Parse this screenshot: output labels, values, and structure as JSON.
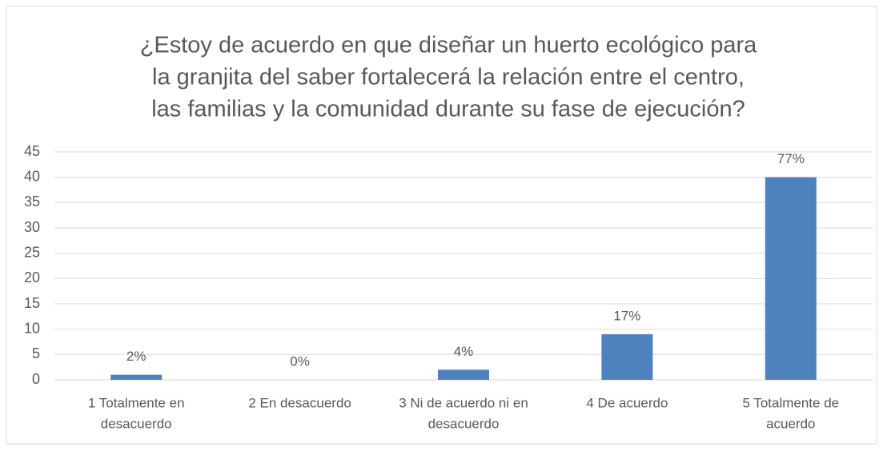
{
  "chart_data": {
    "type": "bar",
    "title": [
      "¿Estoy de acuerdo en que diseñar un huerto ecológico para",
      "la granjita del saber fortalecerá la relación entre el centro,",
      "las familias y la comunidad durante su fase de ejecución?"
    ],
    "categories": [
      [
        "1 Totalmente en",
        "desacuerdo"
      ],
      [
        "2 En desacuerdo"
      ],
      [
        "3 Ni de acuerdo ni en",
        "desacuerdo"
      ],
      [
        "4 De acuerdo"
      ],
      [
        "5 Totalmente de",
        "acuerdo"
      ]
    ],
    "values": [
      1,
      0,
      2,
      9,
      40
    ],
    "value_labels": [
      "2%",
      "0%",
      "4%",
      "17%",
      "77%"
    ],
    "color": "#4f81bd",
    "ylim": [
      0,
      45
    ],
    "yticks": [
      0,
      5,
      10,
      15,
      20,
      25,
      30,
      35,
      40,
      45
    ],
    "grid": true
  }
}
